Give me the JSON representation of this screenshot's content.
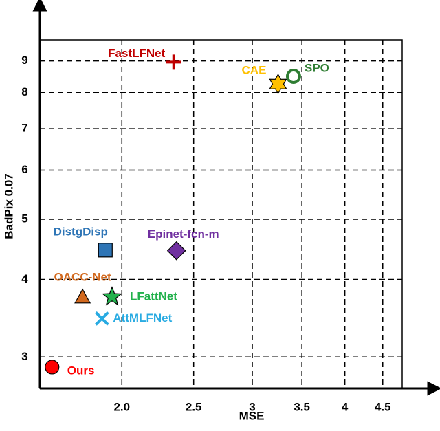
{
  "chart_data": {
    "type": "scatter",
    "x_label": "MSE",
    "y_label": "BadPix 0.07",
    "x_log": true,
    "y_log": true,
    "grid": true,
    "xlim": [
      1.55,
      4.78
    ],
    "ylim": [
      2.67,
      9.73
    ],
    "xticks": [
      {
        "value": 2,
        "label": "2.0"
      },
      2.5,
      3,
      3.5,
      4,
      4.5
    ],
    "yticks": [
      3,
      4,
      5,
      6,
      7,
      8,
      9
    ],
    "series": [
      {
        "name": "Ours",
        "color": "#ff0000",
        "marker": "circle",
        "x": [
          1.61
        ],
        "values": [
          2.89
        ]
      },
      {
        "name": "OACC-Net",
        "color": "#d2691e",
        "marker": "triangle",
        "x": [
          1.77
        ],
        "values": [
          3.75
        ]
      },
      {
        "name": "LFattNet",
        "color": "#22b14c",
        "marker": "star",
        "x": [
          1.94
        ],
        "values": [
          3.75
        ]
      },
      {
        "name": "AttMLFNet",
        "color": "#29abe2",
        "marker": "x",
        "x": [
          1.88
        ],
        "values": [
          3.46
        ]
      },
      {
        "name": "DistgDisp",
        "color": "#2e75b6",
        "marker": "square",
        "x": [
          1.9
        ],
        "values": [
          4.46
        ]
      },
      {
        "name": "Epinet-fcn-m",
        "color": "#7030a0",
        "marker": "diamond",
        "x": [
          2.37
        ],
        "values": [
          4.45
        ]
      },
      {
        "name": "FastLFNet",
        "color": "#c00000",
        "marker": "plus",
        "x": [
          2.35
        ],
        "values": [
          8.96
        ]
      },
      {
        "name": "CAE",
        "color": "#ffc000",
        "marker": "hexagram",
        "x": [
          3.25
        ],
        "values": [
          8.26
        ]
      },
      {
        "name": "SPO",
        "color": "#2e7d32",
        "marker": "ring",
        "x": [
          3.41
        ],
        "values": [
          8.5
        ]
      }
    ]
  }
}
